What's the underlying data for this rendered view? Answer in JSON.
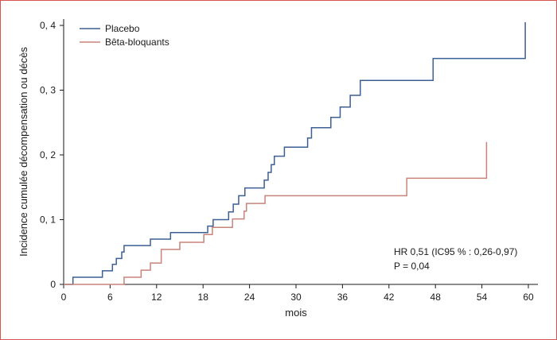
{
  "chart_data": {
    "type": "line",
    "title": "",
    "xlabel": "mois",
    "ylabel": "Incidence cumulée décompensation ou décès",
    "xlim": [
      0,
      60
    ],
    "ylim": [
      0,
      0.4
    ],
    "x_ticks": [
      0,
      6,
      12,
      18,
      24,
      30,
      36,
      42,
      48,
      54,
      60
    ],
    "x_tick_labels": [
      "0",
      "6",
      "12",
      "18",
      "24",
      "30",
      "36",
      "42",
      "48",
      "54",
      "60"
    ],
    "y_ticks": [
      0,
      0.1,
      0.2,
      0.3,
      0.4
    ],
    "y_tick_labels": [
      "0",
      "0, 1",
      "0, 2",
      "0, 3",
      "0, 4"
    ],
    "grid": false,
    "legend_position": "top-left",
    "step": true,
    "series": [
      {
        "name": "Placebo",
        "color": "#3d5f93",
        "x": [
          1.2,
          5.0,
          6.3,
          6.8,
          7.5,
          7.8,
          11.2,
          13.8,
          18.6,
          19.3,
          21.3,
          21.9,
          22.6,
          23.4,
          25.9,
          26.4,
          26.8,
          27.2,
          28.5,
          31.5,
          32.0,
          34.5,
          35.7,
          37.0,
          38.3,
          47.7,
          59.6
        ],
        "y": [
          0.011,
          0.021,
          0.031,
          0.04,
          0.05,
          0.06,
          0.07,
          0.08,
          0.09,
          0.1,
          0.112,
          0.124,
          0.137,
          0.149,
          0.161,
          0.173,
          0.185,
          0.198,
          0.212,
          0.226,
          0.242,
          0.258,
          0.274,
          0.292,
          0.315,
          0.349,
          0.405
        ]
      },
      {
        "name": "Bêta-bloquants",
        "color": "#c8847a",
        "x": [
          7.8,
          10.0,
          11.2,
          12.6,
          15.0,
          18.1,
          19.2,
          21.8,
          23.3,
          23.6,
          26.0,
          44.3,
          54.6
        ],
        "y": [
          0.011,
          0.022,
          0.033,
          0.054,
          0.065,
          0.077,
          0.088,
          0.101,
          0.113,
          0.125,
          0.137,
          0.164,
          0.22
        ]
      }
    ],
    "annotations": [
      "HR 0,51 (IC95 % : 0,26-0,97)",
      "P = 0,04"
    ]
  }
}
